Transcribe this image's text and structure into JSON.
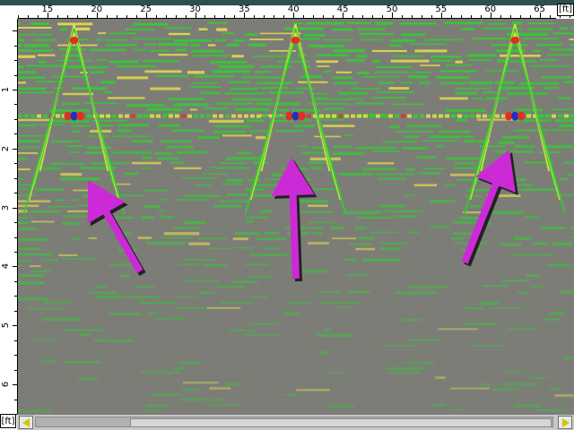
{
  "toolbar": {
    "unit_top": "[ft]",
    "unit_left": "[ft]"
  },
  "horizontal_axis": {
    "labels": [
      "15",
      "20",
      "25",
      "30",
      "35",
      "40",
      "45",
      "50",
      "55",
      "60",
      "65"
    ],
    "start": 12,
    "end": 68.5
  },
  "vertical_axis": {
    "labels": [
      "1",
      "2",
      "3",
      "4",
      "5",
      "6"
    ],
    "start": -0.2,
    "end": 6.5
  },
  "targets": [
    {
      "position_ft": 17.7,
      "depth_ft": 1.45
    },
    {
      "position_ft": 40.2,
      "depth_ft": 1.45
    },
    {
      "position_ft": 62.5,
      "depth_ft": 1.45
    }
  ],
  "colors": {
    "background": "#7d7d78",
    "signal_green": "#2fcf2f",
    "signal_yellow": "#e6e04a",
    "signal_red": "#e03020",
    "signal_blue": "#2030c0",
    "arrow_magenta": "#cc2ad6",
    "scroll_arrow": "#d4c300"
  },
  "scrollbar": {
    "position_fraction": 0.18,
    "visible_fraction": 0.81
  }
}
